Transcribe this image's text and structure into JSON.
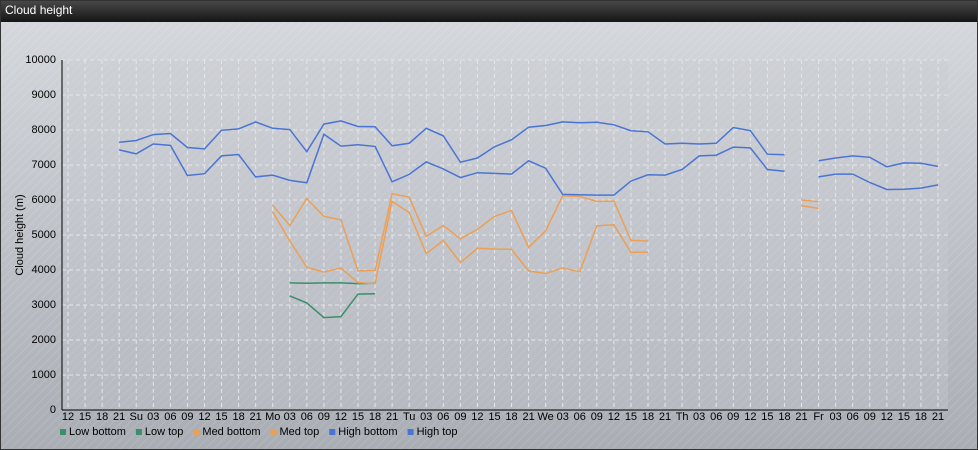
{
  "chart_data": {
    "type": "line",
    "title": "Cloud height",
    "y_label": "Cloud height (m)",
    "categories": [
      "12",
      "15",
      "18",
      "21",
      "Su",
      "03",
      "06",
      "09",
      "12",
      "15",
      "18",
      "21",
      "Mo",
      "03",
      "06",
      "09",
      "12",
      "15",
      "18",
      "21",
      "Tu",
      "03",
      "06",
      "09",
      "12",
      "15",
      "18",
      "21",
      "We",
      "03",
      "06",
      "09",
      "12",
      "15",
      "18",
      "21",
      "Th",
      "03",
      "06",
      "09",
      "12",
      "15",
      "18",
      "21",
      "Fr",
      "03",
      "06",
      "09",
      "12",
      "15",
      "18",
      "21"
    ],
    "ylim": [
      0,
      10000
    ],
    "yticks": [
      0,
      1000,
      2000,
      3000,
      4000,
      5000,
      6000,
      7000,
      8000,
      9000,
      10000
    ],
    "grid": true,
    "series": [
      {
        "name": "Low bottom",
        "color": "#3a8f68",
        "values": [
          null,
          null,
          null,
          null,
          null,
          null,
          null,
          null,
          null,
          null,
          null,
          null,
          null,
          3260,
          3060,
          2640,
          2670,
          3310,
          3320,
          null,
          null,
          null,
          null,
          null,
          null,
          null,
          null,
          null,
          null,
          null,
          null,
          null,
          null,
          null,
          null,
          null,
          null,
          null,
          null,
          null,
          null,
          null,
          null,
          null,
          null,
          null,
          null,
          null,
          null,
          null,
          null,
          null
        ]
      },
      {
        "name": "Low top",
        "color": "#3a8f68",
        "values": [
          null,
          null,
          null,
          null,
          null,
          null,
          null,
          null,
          null,
          null,
          null,
          null,
          null,
          3630,
          3620,
          3630,
          3630,
          3610,
          3620,
          null,
          null,
          null,
          null,
          null,
          null,
          null,
          null,
          null,
          null,
          null,
          null,
          null,
          null,
          null,
          null,
          null,
          null,
          null,
          null,
          null,
          null,
          null,
          null,
          null,
          null,
          null,
          null,
          null,
          null,
          null,
          null,
          null
        ]
      },
      {
        "name": "Med bottom",
        "color": "#eba055",
        "values": [
          null,
          null,
          null,
          null,
          null,
          null,
          null,
          null,
          null,
          null,
          null,
          null,
          5660,
          4830,
          4080,
          3940,
          4060,
          3640,
          3610,
          5960,
          5640,
          4470,
          4840,
          4210,
          4620,
          4600,
          4590,
          3970,
          3900,
          4060,
          3950,
          5260,
          5290,
          4510,
          4510,
          null,
          null,
          null,
          null,
          null,
          null,
          null,
          null,
          5840,
          5760,
          null,
          null,
          null,
          null,
          null,
          null,
          null
        ]
      },
      {
        "name": "Med top",
        "color": "#eba055",
        "values": [
          null,
          null,
          null,
          null,
          null,
          null,
          null,
          null,
          null,
          null,
          null,
          null,
          5850,
          5270,
          6040,
          5530,
          5430,
          3970,
          3990,
          6180,
          6080,
          4960,
          5270,
          4890,
          5160,
          5530,
          5700,
          4650,
          5120,
          6120,
          6100,
          5960,
          5970,
          4850,
          4830,
          null,
          null,
          null,
          null,
          null,
          null,
          null,
          null,
          6000,
          5950,
          null,
          null,
          null,
          null,
          null,
          null,
          null
        ]
      },
      {
        "name": "High bottom",
        "color": "#4a74d4",
        "values": [
          null,
          null,
          null,
          7430,
          7320,
          7600,
          7560,
          6700,
          6750,
          7260,
          7300,
          6660,
          6710,
          6560,
          6490,
          7880,
          7540,
          7580,
          7530,
          6520,
          6730,
          7090,
          6890,
          6640,
          6780,
          6760,
          6740,
          7120,
          6910,
          6160,
          6150,
          6140,
          6140,
          6540,
          6720,
          6710,
          6870,
          7260,
          7280,
          7510,
          7490,
          6870,
          6820,
          null,
          6660,
          6740,
          6740,
          6500,
          6300,
          6310,
          6340,
          6430
        ]
      },
      {
        "name": "High top",
        "color": "#4a74d4",
        "values": [
          null,
          null,
          null,
          7650,
          7700,
          7870,
          7900,
          7500,
          7460,
          7990,
          8030,
          8230,
          8050,
          8010,
          7380,
          8170,
          8260,
          8100,
          8090,
          7550,
          7620,
          8050,
          7830,
          7080,
          7200,
          7520,
          7720,
          8080,
          8130,
          8230,
          8210,
          8220,
          8150,
          7980,
          7950,
          7600,
          7620,
          7600,
          7620,
          8070,
          7980,
          7310,
          7290,
          null,
          7120,
          7200,
          7260,
          7220,
          6950,
          7060,
          7050,
          6960
        ]
      }
    ]
  }
}
